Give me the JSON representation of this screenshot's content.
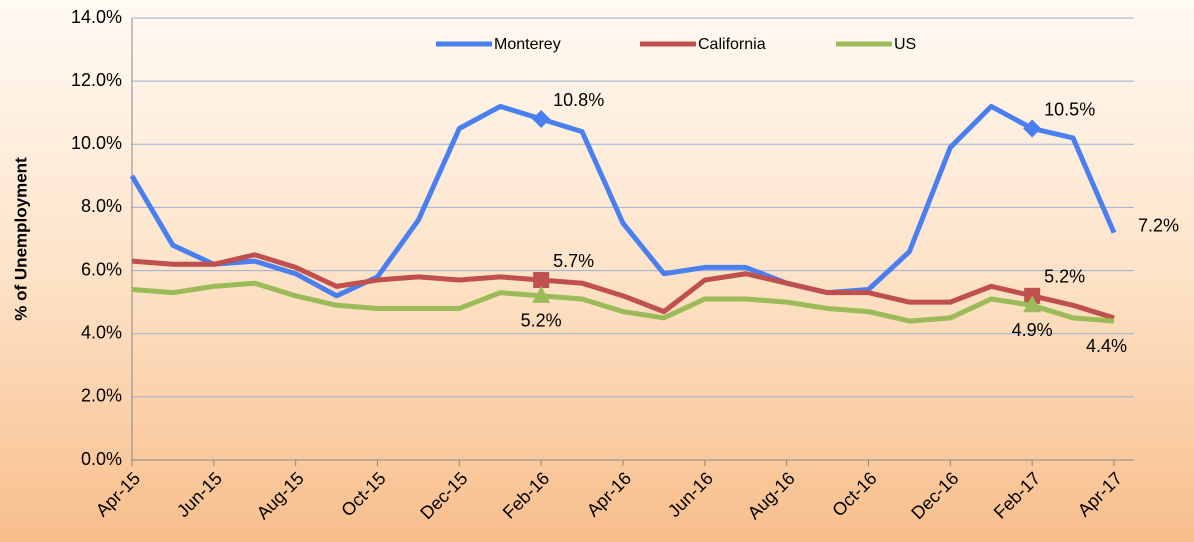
{
  "chart_data": {
    "type": "line",
    "y_label": "% of Unemployment",
    "categories": [
      "Apr-15",
      null,
      "Jun-15",
      null,
      "Aug-15",
      null,
      "Oct-15",
      null,
      "Dec-15",
      null,
      "Feb-16",
      null,
      "Apr-16",
      null,
      "Jun-16",
      null,
      "Aug-16",
      null,
      "Oct-16",
      null,
      "Dec-16",
      null,
      "Feb-17",
      null,
      "Apr-17"
    ],
    "series": [
      {
        "name": "Monterey",
        "color": "#4a7ff0",
        "marker": "diamond",
        "values": [
          9.0,
          6.8,
          6.2,
          6.3,
          5.9,
          5.2,
          5.8,
          7.6,
          10.5,
          11.2,
          10.8,
          10.4,
          7.5,
          5.9,
          6.1,
          6.1,
          5.6,
          5.3,
          5.4,
          6.6,
          9.9,
          11.2,
          10.5,
          10.2,
          7.2
        ],
        "value_labels": [
          null,
          null,
          null,
          null,
          null,
          null,
          null,
          null,
          null,
          null,
          "10.8%",
          null,
          null,
          null,
          null,
          null,
          null,
          null,
          null,
          null,
          null,
          null,
          "10.5%",
          null,
          "7.2%"
        ]
      },
      {
        "name": "California",
        "color": "#c0504d",
        "marker": "square",
        "values": [
          6.3,
          6.2,
          6.2,
          6.5,
          6.1,
          5.5,
          5.7,
          5.8,
          5.7,
          5.8,
          5.7,
          5.6,
          5.2,
          4.7,
          5.7,
          5.9,
          5.6,
          5.3,
          5.3,
          5.0,
          5.0,
          5.5,
          5.2,
          4.9,
          4.5
        ],
        "value_labels": [
          null,
          null,
          null,
          null,
          null,
          null,
          null,
          null,
          null,
          null,
          "5.7%",
          null,
          null,
          null,
          null,
          null,
          null,
          null,
          null,
          null,
          null,
          null,
          "5.2%",
          null,
          null
        ]
      },
      {
        "name": "US",
        "color": "#9bbb59",
        "marker": "triangle",
        "values": [
          5.4,
          5.3,
          5.5,
          5.6,
          5.2,
          4.9,
          4.8,
          4.8,
          4.8,
          5.3,
          5.2,
          5.1,
          4.7,
          4.5,
          5.1,
          5.1,
          5.0,
          4.8,
          4.7,
          4.4,
          4.5,
          5.1,
          4.9,
          4.5,
          4.4
        ],
        "value_labels": [
          null,
          null,
          null,
          null,
          null,
          null,
          null,
          null,
          null,
          null,
          "5.2%",
          null,
          null,
          null,
          null,
          null,
          null,
          null,
          null,
          null,
          null,
          null,
          "4.9%",
          null,
          "4.4%"
        ]
      }
    ],
    "ylim": [
      0,
      14
    ],
    "yticks": [
      {
        "value": 0,
        "label": "0.0%"
      },
      {
        "value": 2,
        "label": "2.0%"
      },
      {
        "value": 4,
        "label": "4.0%"
      },
      {
        "value": 6,
        "label": "6.0%"
      },
      {
        "value": 8,
        "label": "8.0%"
      },
      {
        "value": 10,
        "label": "10.0%"
      },
      {
        "value": 12,
        "label": "12.0%"
      },
      {
        "value": 14,
        "label": "14.0%"
      }
    ],
    "grid": true,
    "legend": "top"
  }
}
